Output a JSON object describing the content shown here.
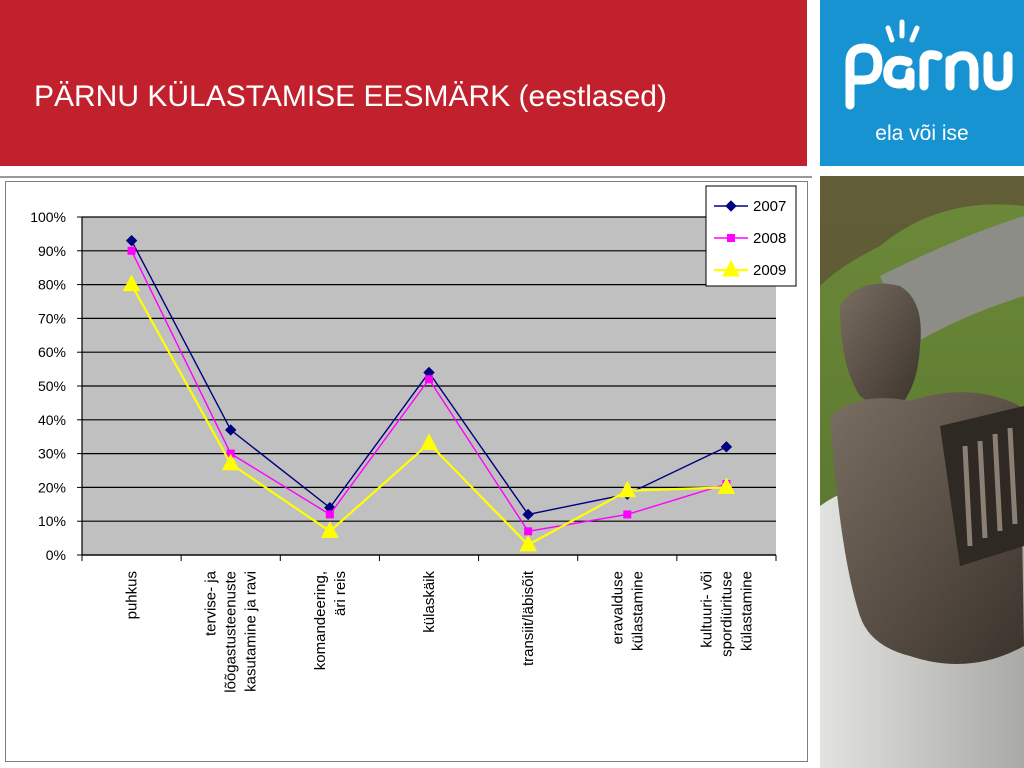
{
  "slide": {
    "title": "PÄRNU KÜLASTAMISE EESMÄRK (eestlased)"
  },
  "logo": {
    "name": "pärnu",
    "tagline": "ela või ise"
  },
  "colors": {
    "header_red": "#c1202d",
    "logo_blue": "#1893d1",
    "plot_bg": "#c0c0c0",
    "series_2007": "#000080",
    "series_2008": "#ff00ff",
    "series_2009": "#ffff00"
  },
  "chart_data": {
    "type": "line",
    "title": "",
    "xlabel": "",
    "ylabel": "",
    "ylim": [
      0,
      100
    ],
    "yticks": [
      "0%",
      "10%",
      "20%",
      "30%",
      "40%",
      "50%",
      "60%",
      "70%",
      "80%",
      "90%",
      "100%"
    ],
    "grid": true,
    "legend_position": "top-right",
    "categories": [
      [
        "puhkus"
      ],
      [
        "tervise- ja",
        "lõõgastusteenuste",
        "kasutamine ja ravi"
      ],
      [
        "komandeering,",
        "äri reis"
      ],
      [
        "külaskäik"
      ],
      [
        "transiit/läbisõit"
      ],
      [
        "eravalduse",
        "külastamine"
      ],
      [
        "kultuuri- või",
        "spordiürituse",
        "külastamine"
      ]
    ],
    "series": [
      {
        "name": "2007",
        "marker": "diamond",
        "color": "#000080",
        "values": [
          93,
          37,
          14,
          54,
          12,
          18,
          32
        ]
      },
      {
        "name": "2008",
        "marker": "square",
        "color": "#ff00ff",
        "values": [
          90,
          30,
          12,
          52,
          7,
          12,
          21
        ]
      },
      {
        "name": "2009",
        "marker": "triangle",
        "color": "#ffff00",
        "values": [
          80,
          27,
          7,
          33,
          3,
          19,
          20
        ]
      }
    ]
  }
}
